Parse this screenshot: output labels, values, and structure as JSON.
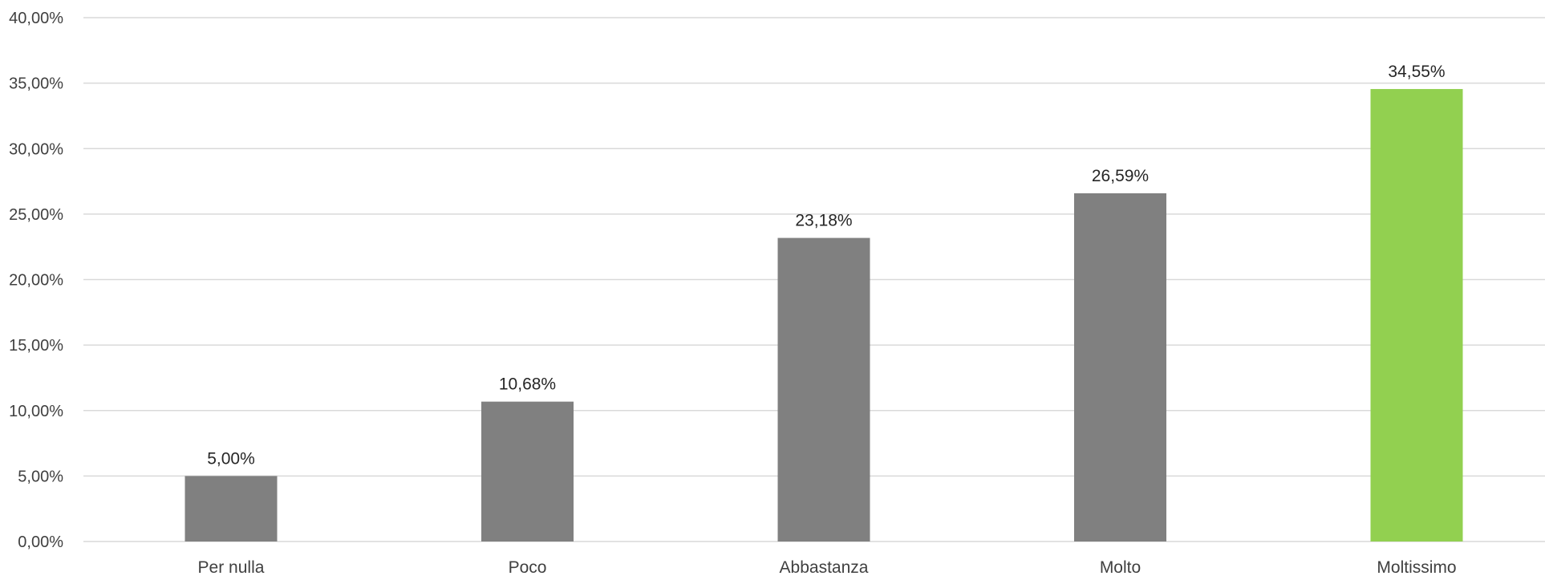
{
  "chart_data": {
    "type": "bar",
    "title": "",
    "xlabel": "",
    "ylabel": "",
    "categories": [
      "Per nulla",
      "Poco",
      "Abbastanza",
      "Molto",
      "Moltissimo"
    ],
    "values": [
      5.0,
      10.68,
      23.18,
      26.59,
      34.55
    ],
    "value_labels": [
      "5,00%",
      "10,68%",
      "23,18%",
      "26,59%",
      "34,55%"
    ],
    "ylim": [
      0,
      40
    ],
    "y_ticks": [
      0,
      5,
      10,
      15,
      20,
      25,
      30,
      35,
      40
    ],
    "y_tick_labels": [
      "0,00%",
      "5,00%",
      "10,00%",
      "15,00%",
      "20,00%",
      "25,00%",
      "30,00%",
      "35,00%",
      "40,00%"
    ],
    "grid": true,
    "legend": "none",
    "colors": {
      "bar_default": "#808080",
      "bar_highlight": "#92d050",
      "grid": "#d9d9d9",
      "text": "#404040",
      "label_text": "#262626"
    },
    "highlight_index": 4
  }
}
